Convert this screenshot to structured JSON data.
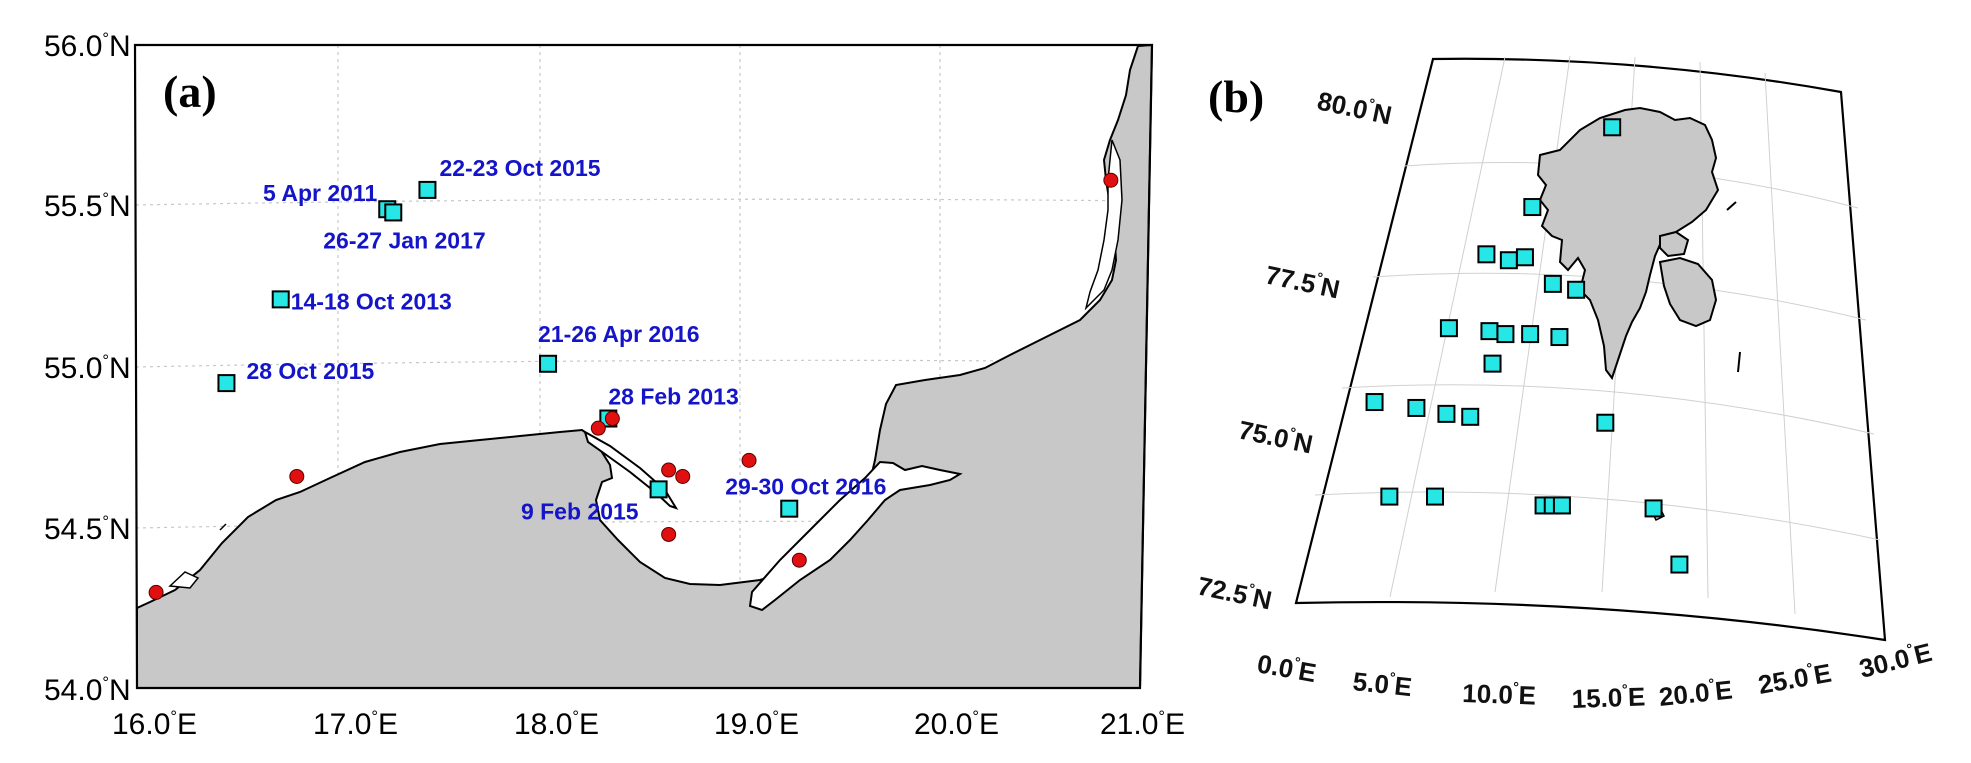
{
  "panel_a": {
    "label": "(a)",
    "lat_ticks": [
      "56.0",
      "55.5",
      "55.0",
      "54.5",
      "54.0"
    ],
    "lat_suffix": "N",
    "lon_ticks": [
      "16.0",
      "17.0",
      "18.0",
      "19.0",
      "20.0",
      "21.0"
    ],
    "lon_suffix": "E",
    "events": [
      {
        "label": "22-23 Oct 2015",
        "lon": 17.45,
        "lat": 55.55
      },
      {
        "label": "5 Apr 2011",
        "lon": 17.25,
        "lat": 55.49
      },
      {
        "label": "26-27 Jan 2017",
        "lon": 17.28,
        "lat": 55.48
      },
      {
        "label": "14-18 Oct 2013",
        "lon": 16.72,
        "lat": 55.21
      },
      {
        "label": "21-26 Apr 2016",
        "lon": 18.05,
        "lat": 55.01
      },
      {
        "label": "28 Oct 2015",
        "lon": 16.45,
        "lat": 54.95
      },
      {
        "label": "28 Feb 2013",
        "lon": 18.35,
        "lat": 54.84
      },
      {
        "label": "29-30 Oct 2016",
        "lon": 19.25,
        "lat": 54.56
      },
      {
        "label": "9 Feb 2015",
        "lon": 18.6,
        "lat": 54.62
      }
    ],
    "stations": [
      {
        "lon": 16.1,
        "lat": 54.3
      },
      {
        "lon": 16.8,
        "lat": 54.66
      },
      {
        "lon": 18.3,
        "lat": 54.81
      },
      {
        "lon": 18.37,
        "lat": 54.84
      },
      {
        "lon": 18.65,
        "lat": 54.68
      },
      {
        "lon": 18.72,
        "lat": 54.66
      },
      {
        "lon": 19.05,
        "lat": 54.71
      },
      {
        "lon": 18.65,
        "lat": 54.48
      },
      {
        "lon": 19.3,
        "lat": 54.4
      },
      {
        "lon": 20.85,
        "lat": 55.58
      }
    ]
  },
  "panel_b": {
    "label": "(b)",
    "lat_ticks": [
      "80.0",
      "77.5",
      "75.0",
      "72.5"
    ],
    "lat_suffix": "N",
    "lon_ticks": [
      "0.0",
      "5.0",
      "10.0",
      "15.0",
      "20.0",
      "25.0",
      "30.0"
    ],
    "lon_suffix": "E",
    "stations": [
      {
        "lon": 13.8,
        "lat": 80.0
      },
      {
        "lon": 9.0,
        "lat": 78.65
      },
      {
        "lon": 6.5,
        "lat": 77.85
      },
      {
        "lon": 8.0,
        "lat": 77.75
      },
      {
        "lon": 9.0,
        "lat": 77.8
      },
      {
        "lon": 11.0,
        "lat": 77.35
      },
      {
        "lon": 12.5,
        "lat": 77.25
      },
      {
        "lon": 5.0,
        "lat": 76.6
      },
      {
        "lon": 7.5,
        "lat": 76.55
      },
      {
        "lon": 8.5,
        "lat": 76.5
      },
      {
        "lon": 10.0,
        "lat": 76.5
      },
      {
        "lon": 11.8,
        "lat": 76.45
      },
      {
        "lon": 8.0,
        "lat": 76.0
      },
      {
        "lon": 1.5,
        "lat": 75.35
      },
      {
        "lon": 4.0,
        "lat": 75.25
      },
      {
        "lon": 5.8,
        "lat": 75.15
      },
      {
        "lon": 7.2,
        "lat": 75.1
      },
      {
        "lon": 15.0,
        "lat": 75.0
      },
      {
        "lon": 3.5,
        "lat": 73.75
      },
      {
        "lon": 6.0,
        "lat": 73.75
      },
      {
        "lon": 12.0,
        "lat": 73.6
      },
      {
        "lon": 12.5,
        "lat": 73.6
      },
      {
        "lon": 13.0,
        "lat": 73.6
      },
      {
        "lon": 18.0,
        "lat": 73.55
      },
      {
        "lon": 19.5,
        "lat": 72.6
      }
    ]
  },
  "colors": {
    "event_text": "#1414c8",
    "square_fill": "#26e6e6",
    "dot_fill": "#e01010",
    "land": "#c8c8c8"
  }
}
